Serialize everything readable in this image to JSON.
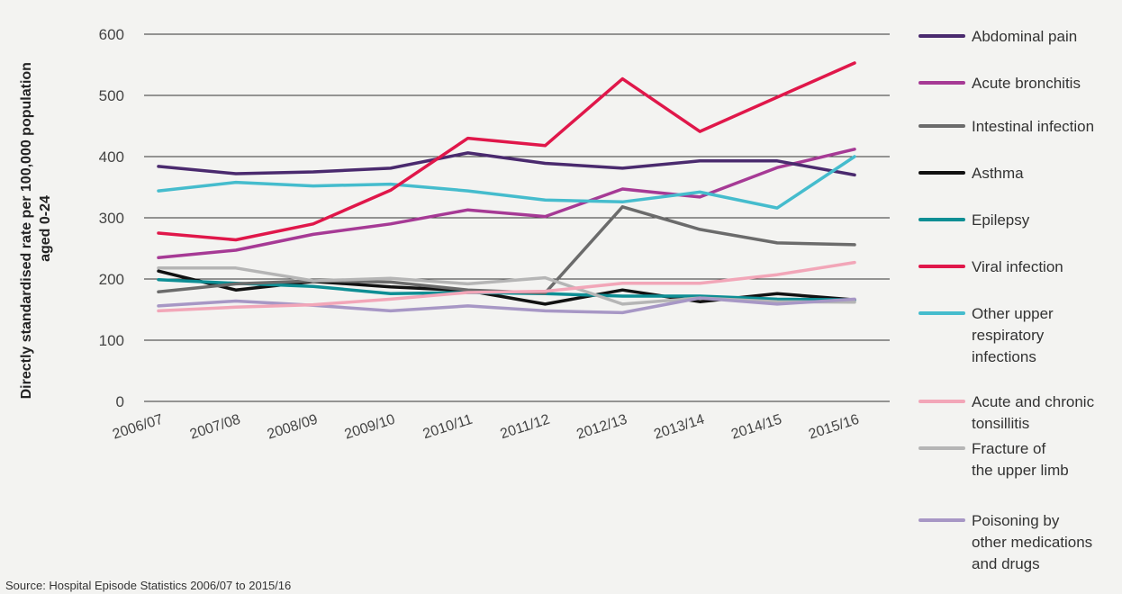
{
  "chart_data": {
    "type": "line",
    "title": "",
    "xlabel": "",
    "ylabel_lines": [
      "Directly standardised rate per 100,000 population",
      "aged 0-24"
    ],
    "ylim": [
      0,
      600
    ],
    "yticks": [
      0,
      100,
      200,
      300,
      400,
      500,
      600
    ],
    "grid": true,
    "legend_position": "right",
    "categories": [
      "2006/07",
      "2007/08",
      "2008/09",
      "2009/10",
      "2010/11",
      "2011/12",
      "2012/13",
      "2013/14",
      "2014/15",
      "2015/16"
    ],
    "series": [
      {
        "name": "Abdominal pain",
        "name_lines": [
          "Abdominal pain"
        ],
        "color": "#4a2a6e",
        "values": [
          384,
          372,
          375,
          381,
          406,
          389,
          381,
          393,
          393,
          370
        ]
      },
      {
        "name": "Acute bronchitis",
        "name_lines": [
          "Acute bronchitis"
        ],
        "color": "#a63a95",
        "values": [
          235,
          247,
          273,
          290,
          313,
          302,
          347,
          334,
          382,
          412
        ]
      },
      {
        "name": "Intestinal infection",
        "name_lines": [
          "Intestinal infection"
        ],
        "color": "#6b6b6b",
        "values": [
          179,
          192,
          197,
          195,
          182,
          177,
          318,
          281,
          259,
          256
        ]
      },
      {
        "name": "Asthma",
        "name_lines": [
          "Asthma"
        ],
        "color": "#111111",
        "values": [
          213,
          182,
          196,
          187,
          181,
          159,
          182,
          163,
          176,
          166
        ]
      },
      {
        "name": "Epilepsy",
        "name_lines": [
          "Epilepsy"
        ],
        "color": "#0d8e94",
        "values": [
          199,
          193,
          188,
          176,
          178,
          176,
          172,
          172,
          167,
          166
        ]
      },
      {
        "name": "Viral infection",
        "name_lines": [
          "Viral infection"
        ],
        "color": "#e0174a",
        "values": [
          275,
          264,
          290,
          345,
          430,
          418,
          527,
          441,
          497,
          553
        ]
      },
      {
        "name": "Other upper respiratory infections",
        "name_lines": [
          "Other upper",
          "respiratory",
          "infections"
        ],
        "color": "#45bccd",
        "values": [
          344,
          358,
          352,
          355,
          344,
          329,
          326,
          342,
          316,
          400
        ]
      },
      {
        "name": "Acute and chronic tonsillitis",
        "name_lines": [
          "Acute and chronic",
          "tonsillitis"
        ],
        "color": "#f2a6b8",
        "values": [
          148,
          154,
          158,
          167,
          178,
          180,
          193,
          193,
          207,
          227
        ]
      },
      {
        "name": "Fracture of the upper limb",
        "name_lines": [
          "Fracture of",
          "the upper limb"
        ],
        "color": "#b5b5b5",
        "values": [
          218,
          218,
          197,
          201,
          192,
          202,
          159,
          169,
          163,
          162
        ]
      },
      {
        "name": "Poisoning by other medications and drugs",
        "name_lines": [
          "Poisoning by",
          "other medications",
          "and drugs"
        ],
        "color": "#a797c5",
        "values": [
          156,
          164,
          157,
          148,
          156,
          148,
          145,
          169,
          159,
          167
        ]
      }
    ],
    "source": "Source: Hospital Episode Statistics 2006/07 to 2015/16"
  }
}
